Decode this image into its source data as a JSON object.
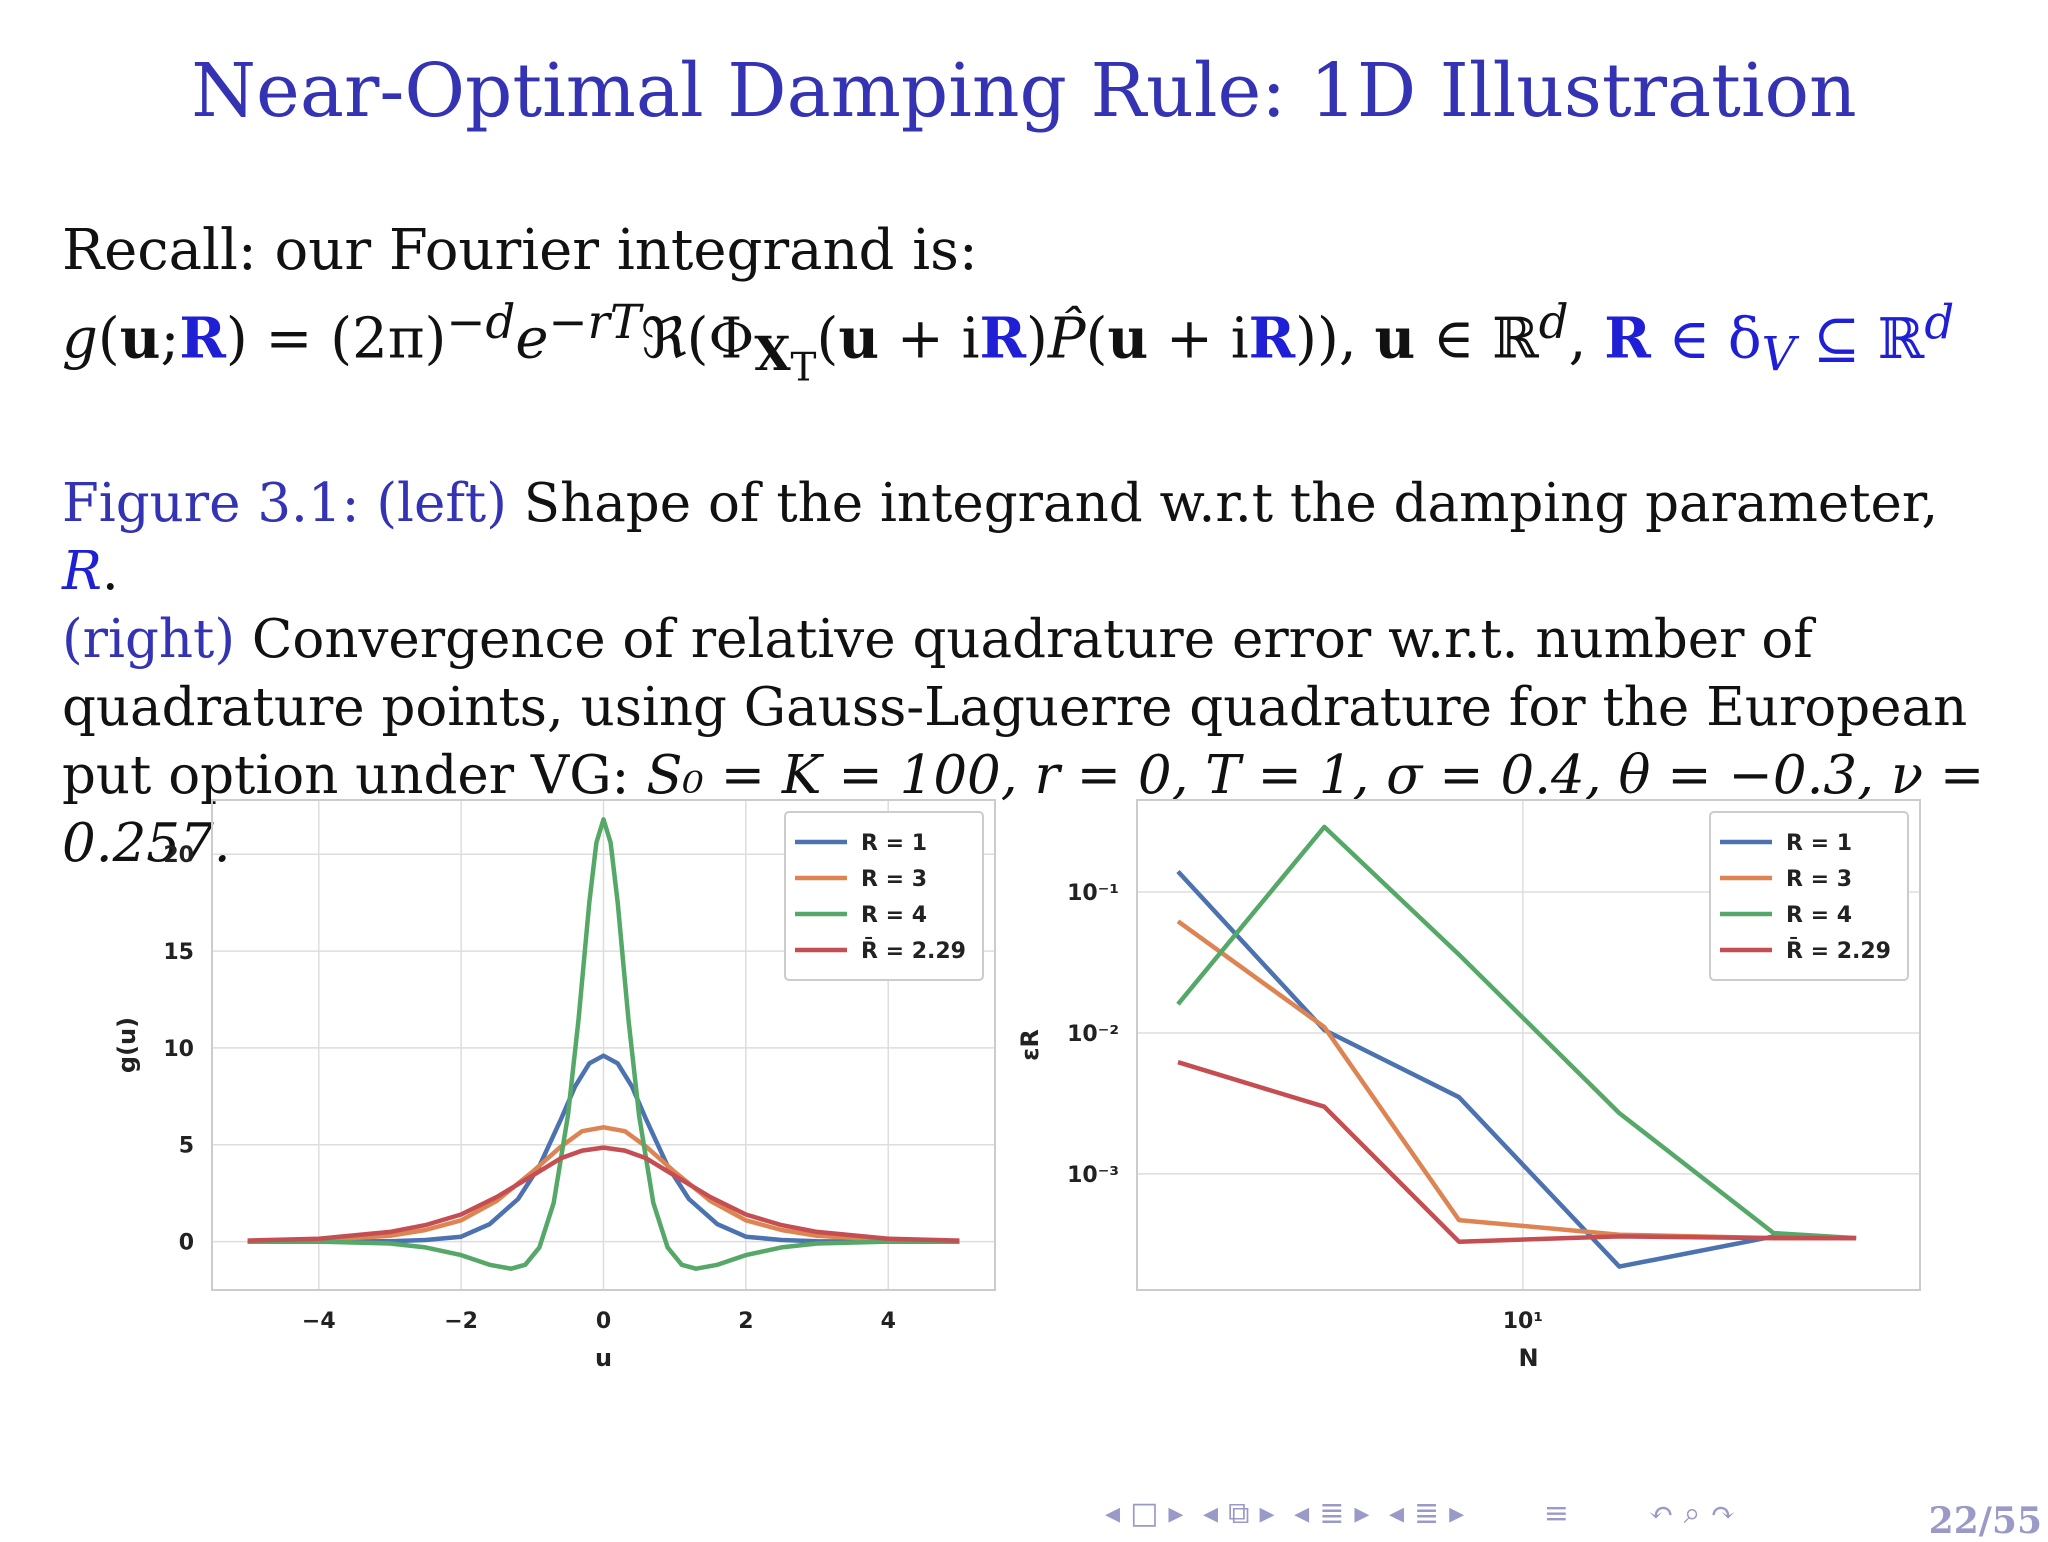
{
  "slide": {
    "title": "Near-Optimal Damping Rule: 1D Illustration",
    "recall": "Recall: our Fourier integrand is:",
    "caption_label_left": "Figure 3.1: (left)",
    "caption_text_1": " Shape of the integrand w.r.t the damping parameter, ",
    "caption_R": "R",
    "caption_label_right": "(right)",
    "caption_text_2": " Convergence of relative quadrature error w.r.t. number of quadrature points, using Gauss-Laguerre quadrature for the European put option under VG: ",
    "caption_params": "S₀ = K = 100, r = 0, T = 1, σ = 0.4, θ = −0.3, ν = 0.257.",
    "page": "22/55"
  },
  "nav_icons": [
    "nav-left-icon",
    "frame-icon",
    "nav-right-icon",
    "nav-left-icon",
    "subsection-icon",
    "nav-right-icon",
    "nav-left-icon",
    "section-icon",
    "nav-right-icon",
    "nav-left-icon",
    "doc-icon",
    "nav-right-icon",
    "align-icon",
    "undo-icon",
    "search-icon",
    "redo-icon"
  ],
  "chart_data": [
    {
      "type": "line",
      "title": "",
      "xlabel": "u",
      "ylabel": "g(u)",
      "xlim": [
        -5.5,
        5.5
      ],
      "ylim": [
        -2.5,
        22.8
      ],
      "xticks": [
        -4,
        -2,
        0,
        2,
        4
      ],
      "xtick_labels": [
        "−4",
        "−2",
        "0",
        "2",
        "4"
      ],
      "yticks": [
        0,
        5,
        10,
        15,
        20
      ],
      "ytick_labels": [
        "0",
        "5",
        "10",
        "15",
        "20"
      ],
      "grid": true,
      "legend_position": "top-right",
      "series": [
        {
          "name": "R = 1",
          "color": "#4c72b0",
          "x": [
            -5,
            -4,
            -3,
            -2.5,
            -2,
            -1.6,
            -1.2,
            -0.9,
            -0.6,
            -0.4,
            -0.2,
            0,
            0.2,
            0.4,
            0.6,
            0.9,
            1.2,
            1.6,
            2,
            2.5,
            3,
            4,
            5
          ],
          "y": [
            0,
            0,
            0.02,
            0.08,
            0.25,
            0.9,
            2.2,
            3.9,
            6.3,
            8.0,
            9.2,
            9.6,
            9.2,
            8.0,
            6.3,
            3.9,
            2.2,
            0.9,
            0.25,
            0.08,
            0.02,
            0,
            0
          ]
        },
        {
          "name": "R = 3",
          "color": "#dd8452",
          "x": [
            -5,
            -4,
            -3,
            -2.5,
            -2,
            -1.5,
            -1,
            -0.6,
            -0.3,
            0,
            0.3,
            0.6,
            1,
            1.5,
            2,
            2.5,
            3,
            4,
            5
          ],
          "y": [
            0.02,
            0.08,
            0.3,
            0.6,
            1.1,
            2.1,
            3.6,
            4.9,
            5.7,
            5.9,
            5.7,
            4.9,
            3.6,
            2.1,
            1.1,
            0.6,
            0.3,
            0.08,
            0.02
          ]
        },
        {
          "name": "R = 4",
          "color": "#55a868",
          "x": [
            -5,
            -4,
            -3,
            -2.5,
            -2,
            -1.6,
            -1.3,
            -1.1,
            -0.9,
            -0.7,
            -0.5,
            -0.35,
            -0.2,
            -0.1,
            0,
            0.1,
            0.2,
            0.35,
            0.5,
            0.7,
            0.9,
            1.1,
            1.3,
            1.6,
            2,
            2.5,
            3,
            4,
            5
          ],
          "y": [
            0,
            0,
            -0.1,
            -0.3,
            -0.7,
            -1.2,
            -1.4,
            -1.2,
            -0.3,
            2.0,
            6.5,
            11.5,
            17.5,
            20.6,
            21.8,
            20.6,
            17.5,
            11.5,
            6.5,
            2.0,
            -0.3,
            -1.2,
            -1.4,
            -1.2,
            -0.7,
            -0.3,
            -0.1,
            0,
            0
          ]
        },
        {
          "name": "R̄ = 2.29",
          "color": "#c44e52",
          "x": [
            -5,
            -4,
            -3,
            -2.5,
            -2,
            -1.5,
            -1,
            -0.6,
            -0.3,
            0,
            0.3,
            0.6,
            1,
            1.5,
            2,
            2.5,
            3,
            4,
            5
          ],
          "y": [
            0.05,
            0.15,
            0.5,
            0.85,
            1.4,
            2.3,
            3.4,
            4.3,
            4.7,
            4.85,
            4.7,
            4.3,
            3.4,
            2.3,
            1.4,
            0.85,
            0.5,
            0.15,
            0.05
          ]
        }
      ]
    },
    {
      "type": "line",
      "title": "",
      "xlabel": "N",
      "ylabel": "εR",
      "xscale": "log",
      "yscale": "log",
      "xlim": [
        2.6,
        40
      ],
      "ylim": [
        0.00015,
        0.45
      ],
      "xticks": [
        10
      ],
      "xtick_labels": [
        "10¹"
      ],
      "yticks": [
        0.1,
        0.01,
        0.001
      ],
      "ytick_labels": [
        "10⁻¹",
        "10⁻²",
        "10⁻³"
      ],
      "grid": true,
      "legend_position": "top-right",
      "series": [
        {
          "name": "R = 1",
          "color": "#4c72b0",
          "x": [
            3,
            5,
            8,
            14,
            24,
            32
          ],
          "y": [
            0.14,
            0.0105,
            0.0035,
            0.00022,
            0.00036,
            0.00035
          ]
        },
        {
          "name": "R = 3",
          "color": "#dd8452",
          "x": [
            3,
            5,
            8,
            14,
            24,
            32
          ],
          "y": [
            0.062,
            0.011,
            0.00047,
            0.00037,
            0.00035,
            0.00035
          ]
        },
        {
          "name": "R = 4",
          "color": "#55a868",
          "x": [
            3,
            5,
            8,
            14,
            24,
            32
          ],
          "y": [
            0.016,
            0.29,
            0.036,
            0.0027,
            0.00038,
            0.00035
          ]
        },
        {
          "name": "R̄ = 2.29",
          "color": "#c44e52",
          "x": [
            3,
            5,
            8,
            14,
            24,
            32
          ],
          "y": [
            0.0062,
            0.003,
            0.00033,
            0.00036,
            0.00035,
            0.00035
          ]
        }
      ]
    }
  ]
}
